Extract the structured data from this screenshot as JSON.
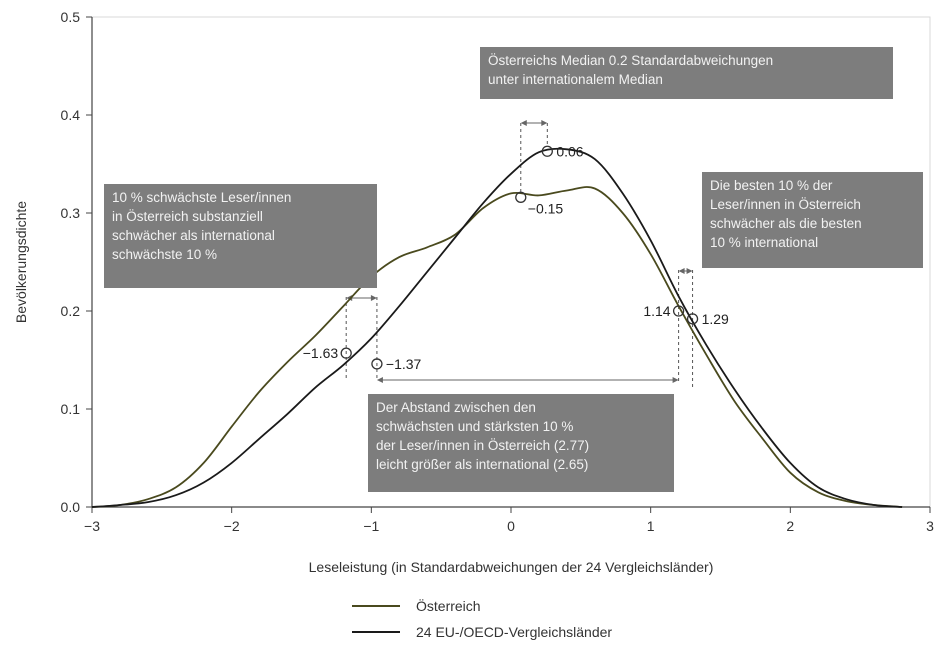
{
  "chart_data": {
    "type": "line",
    "xlabel": "Leseleistung (in Standardabweichungen der 24 Vergleichsländer)",
    "ylabel": "Bevölkerungsdichte",
    "xlim": [
      -3,
      3
    ],
    "ylim": [
      0,
      0.5
    ],
    "xticks": [
      "−3",
      "−2",
      "−1",
      "0",
      "1",
      "2",
      "3"
    ],
    "yticks": [
      "0.0",
      "0.1",
      "0.2",
      "0.3",
      "0.4",
      "0.5"
    ],
    "grid": false,
    "legend_position": "bottom-center",
    "series": [
      {
        "name": "Österreich",
        "color": "#4a4a1e",
        "x": [
          -3.0,
          -2.8,
          -2.6,
          -2.4,
          -2.2,
          -2.0,
          -1.8,
          -1.6,
          -1.4,
          -1.2,
          -1.0,
          -0.8,
          -0.6,
          -0.4,
          -0.2,
          0.0,
          0.2,
          0.4,
          0.6,
          0.8,
          1.0,
          1.2,
          1.4,
          1.6,
          1.8,
          2.0,
          2.2,
          2.4,
          2.6,
          2.8
        ],
        "values": [
          0.0,
          0.002,
          0.008,
          0.02,
          0.045,
          0.082,
          0.118,
          0.148,
          0.175,
          0.205,
          0.235,
          0.255,
          0.265,
          0.278,
          0.305,
          0.32,
          0.318,
          0.323,
          0.325,
          0.3,
          0.258,
          0.205,
          0.155,
          0.108,
          0.07,
          0.035,
          0.015,
          0.006,
          0.002,
          0.0
        ]
      },
      {
        "name": "24 EU-/OECD-Vergleichsländer",
        "color": "#1a1a1a",
        "x": [
          -3.0,
          -2.8,
          -2.6,
          -2.4,
          -2.2,
          -2.0,
          -1.8,
          -1.6,
          -1.4,
          -1.2,
          -1.0,
          -0.8,
          -0.6,
          -0.4,
          -0.2,
          0.0,
          0.2,
          0.4,
          0.6,
          0.8,
          1.0,
          1.2,
          1.4,
          1.6,
          1.8,
          2.0,
          2.2,
          2.4,
          2.6,
          2.8
        ],
        "values": [
          0.0,
          0.002,
          0.005,
          0.012,
          0.025,
          0.045,
          0.07,
          0.095,
          0.122,
          0.145,
          0.172,
          0.205,
          0.24,
          0.275,
          0.31,
          0.34,
          0.362,
          0.365,
          0.355,
          0.32,
          0.272,
          0.215,
          0.165,
          0.12,
          0.08,
          0.045,
          0.02,
          0.008,
          0.002,
          0.0
        ]
      }
    ],
    "points": [
      {
        "label": "−1.63",
        "x": -1.18,
        "y": 0.157,
        "anchor": "left"
      },
      {
        "label": "−1.37",
        "x": -0.96,
        "y": 0.146,
        "anchor": "right"
      },
      {
        "label": "0.06",
        "x": 0.26,
        "y": 0.363,
        "anchor": "right"
      },
      {
        "label": "−0.15",
        "x": 0.07,
        "y": 0.316,
        "anchor": "right-below"
      },
      {
        "label": "1.14",
        "x": 1.2,
        "y": 0.2,
        "anchor": "left"
      },
      {
        "label": "1.29",
        "x": 1.3,
        "y": 0.192,
        "anchor": "right"
      }
    ],
    "annotations": [
      "Österreichs Median 0.2 Standardabweichungen unter internationalem Median",
      "10 % schwächste Leser/innen in Österreich substanziell schwächer als international schwächste 10 %",
      "Die besten 10 % der Leser/innen in Österreich schwächer als die besten 10 % international",
      "Der Abstand zwischen den schwächsten und stärksten 10 % der Leser/innen in Österreich (2.77) leicht größer als international (2.65)"
    ]
  },
  "annotation_lines": {
    "median": [
      "Österreichs Median 0.2 Standardabweichungen",
      "unter internationalem Median"
    ],
    "weakest": [
      "10 % schwächste Leser/innen",
      "in Österreich substanziell",
      "schwächer als international",
      "schwächste 10 %"
    ],
    "best": [
      "Die besten 10 % der",
      "Leser/innen in Österreich",
      "schwächer als die besten",
      "10 % international"
    ],
    "gap": [
      "Der Abstand zwischen den",
      "schwächsten und stärksten 10 %",
      "der Leser/innen in Österreich (2.77)",
      "leicht größer als international (2.65)"
    ]
  }
}
